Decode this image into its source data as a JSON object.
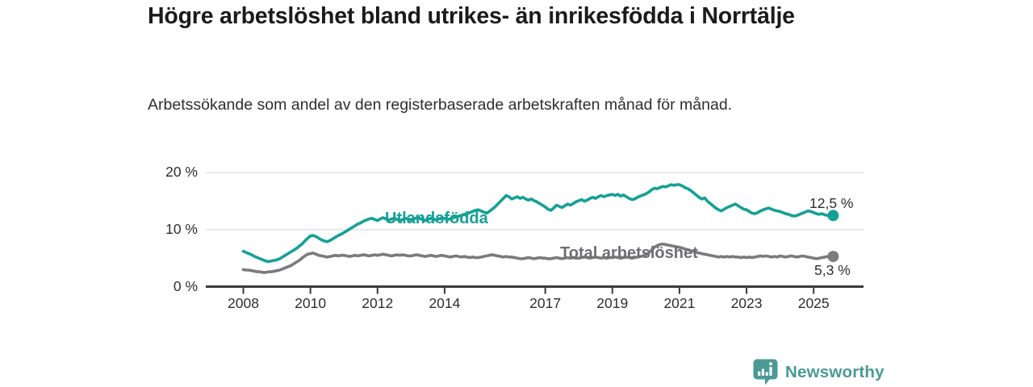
{
  "title": "Högre arbetslöshet bland utrikes- än inrikesfödda i Norrtälje",
  "subtitle": "Arbetssökande som andel av den registerbaserade arbetskraften månad för månad.",
  "branding": {
    "name": "Newsworthy",
    "color": "#4a9a95",
    "icon": "bar-chart-speech-bubble-icon"
  },
  "chart_data": {
    "type": "line",
    "title": "Högre arbetslöshet bland utrikes- än inrikesfödda i Norrtälje",
    "subtitle": "Arbetssökande som andel av den registerbaserade arbetskraften månad för månad.",
    "frequency": "monthly",
    "x_start": "2008-01",
    "x_end": "2025-08",
    "x_ticks": [
      2008,
      2010,
      2012,
      2014,
      2017,
      2019,
      2021,
      2023,
      2025
    ],
    "y_ticks": [
      {
        "value": 0,
        "label": "0 %"
      },
      {
        "value": 10,
        "label": "10 %"
      },
      {
        "value": 20,
        "label": "20 %"
      }
    ],
    "ylim": [
      0,
      20
    ],
    "grid": "horizontal",
    "legend_position": "inline-on-line",
    "series": [
      {
        "name": "Utlandsfödda",
        "color": "#16a096",
        "end_value": 12.5,
        "end_label": "12,5 %",
        "values": [
          6.2,
          6.0,
          5.8,
          5.6,
          5.3,
          5.1,
          4.9,
          4.7,
          4.5,
          4.4,
          4.5,
          4.6,
          4.7,
          4.9,
          5.2,
          5.5,
          5.8,
          6.1,
          6.4,
          6.7,
          7.1,
          7.5,
          8.0,
          8.5,
          8.9,
          9.0,
          8.8,
          8.5,
          8.2,
          8.0,
          7.9,
          8.1,
          8.4,
          8.7,
          9.0,
          9.2,
          9.5,
          9.8,
          10.1,
          10.4,
          10.7,
          11.0,
          11.2,
          11.5,
          11.7,
          11.9,
          12.0,
          11.8,
          11.6,
          11.9,
          12.1,
          11.9,
          11.7,
          11.9,
          12.0,
          11.8,
          11.6,
          11.8,
          12.0,
          11.9,
          11.7,
          11.9,
          12.1,
          12.0,
          11.8,
          11.6,
          11.8,
          12.0,
          11.9,
          11.7,
          11.9,
          12.1,
          12.0,
          11.8,
          11.9,
          12.1,
          12.2,
          12.4,
          12.5,
          12.7,
          12.8,
          13.0,
          13.2,
          13.4,
          13.5,
          13.3,
          13.1,
          12.9,
          13.2,
          13.6,
          14.0,
          14.5,
          15.0,
          15.5,
          16.0,
          15.8,
          15.4,
          15.6,
          15.8,
          15.5,
          15.7,
          15.4,
          15.2,
          15.4,
          15.1,
          14.9,
          14.6,
          14.3,
          14.0,
          13.6,
          13.4,
          13.8,
          14.3,
          14.1,
          13.9,
          14.2,
          14.5,
          14.3,
          14.6,
          14.9,
          15.1,
          15.3,
          15.0,
          15.2,
          15.5,
          15.7,
          15.5,
          15.8,
          16.0,
          15.8,
          16.0,
          16.1,
          16.2,
          16.0,
          16.2,
          15.9,
          16.1,
          15.8,
          15.5,
          15.3,
          15.4,
          15.7,
          15.9,
          16.1,
          16.3,
          16.6,
          17.0,
          17.3,
          17.2,
          17.4,
          17.6,
          17.5,
          17.7,
          17.9,
          17.8,
          17.9,
          17.9,
          17.7,
          17.4,
          17.2,
          16.9,
          16.5,
          16.1,
          15.7,
          15.4,
          15.6,
          15.0,
          14.6,
          14.2,
          13.8,
          13.5,
          13.3,
          13.6,
          13.9,
          14.1,
          14.3,
          14.5,
          14.2,
          13.9,
          13.6,
          13.5,
          13.2,
          12.9,
          12.8,
          13.0,
          13.3,
          13.5,
          13.7,
          13.8,
          13.6,
          13.4,
          13.3,
          13.2,
          13.0,
          12.8,
          12.7,
          12.5,
          12.4,
          12.5,
          12.7,
          12.9,
          13.1,
          13.3,
          13.2,
          13.0,
          12.8,
          12.7,
          12.8,
          12.6,
          12.5,
          12.4,
          12.5
        ]
      },
      {
        "name": "Total arbetslöshet",
        "color": "#7b7b7e",
        "end_value": 5.3,
        "end_label": "5,3 %",
        "values": [
          3.0,
          2.9,
          2.9,
          2.8,
          2.7,
          2.6,
          2.6,
          2.5,
          2.5,
          2.6,
          2.6,
          2.7,
          2.8,
          2.9,
          3.1,
          3.3,
          3.5,
          3.7,
          4.0,
          4.3,
          4.6,
          5.0,
          5.4,
          5.7,
          5.8,
          5.9,
          5.7,
          5.5,
          5.4,
          5.3,
          5.2,
          5.3,
          5.4,
          5.5,
          5.4,
          5.5,
          5.5,
          5.4,
          5.3,
          5.4,
          5.5,
          5.4,
          5.5,
          5.6,
          5.5,
          5.4,
          5.5,
          5.6,
          5.5,
          5.6,
          5.7,
          5.6,
          5.5,
          5.4,
          5.5,
          5.6,
          5.5,
          5.6,
          5.5,
          5.4,
          5.4,
          5.5,
          5.6,
          5.5,
          5.4,
          5.3,
          5.4,
          5.5,
          5.4,
          5.3,
          5.4,
          5.5,
          5.4,
          5.3,
          5.2,
          5.3,
          5.4,
          5.3,
          5.2,
          5.3,
          5.2,
          5.1,
          5.2,
          5.1,
          5.1,
          5.2,
          5.3,
          5.4,
          5.5,
          5.6,
          5.5,
          5.4,
          5.3,
          5.2,
          5.3,
          5.2,
          5.2,
          5.1,
          5.0,
          4.9,
          4.9,
          5.0,
          5.1,
          5.0,
          4.9,
          5.0,
          5.1,
          5.0,
          5.0,
          4.9,
          4.9,
          5.0,
          5.1,
          5.0,
          4.9,
          5.0,
          5.1,
          5.0,
          5.1,
          5.0,
          5.0,
          5.1,
          5.2,
          5.1,
          5.0,
          5.1,
          5.2,
          5.1,
          5.0,
          5.1,
          5.0,
          5.1,
          5.1,
          5.2,
          5.1,
          5.0,
          5.1,
          5.2,
          5.1,
          5.0,
          5.1,
          5.2,
          5.3,
          5.4,
          5.6,
          5.9,
          6.4,
          6.9,
          7.2,
          7.4,
          7.5,
          7.4,
          7.3,
          7.2,
          7.1,
          7.0,
          6.9,
          6.8,
          6.6,
          6.5,
          6.3,
          6.2,
          6.0,
          5.9,
          5.8,
          5.7,
          5.6,
          5.5,
          5.4,
          5.3,
          5.2,
          5.3,
          5.2,
          5.3,
          5.2,
          5.3,
          5.2,
          5.2,
          5.1,
          5.2,
          5.1,
          5.2,
          5.1,
          5.2,
          5.3,
          5.4,
          5.3,
          5.4,
          5.3,
          5.2,
          5.3,
          5.2,
          5.4,
          5.3,
          5.2,
          5.3,
          5.4,
          5.3,
          5.2,
          5.3,
          5.4,
          5.3,
          5.2,
          5.1,
          5.0,
          4.9,
          5.0,
          5.1,
          5.2,
          5.3,
          5.3,
          5.3
        ]
      }
    ]
  }
}
